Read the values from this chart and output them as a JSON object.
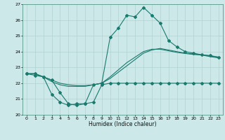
{
  "xlabel": "Humidex (Indice chaleur)",
  "bg_color": "#cce8e8",
  "grid_color": "#aacccc",
  "line_color": "#1a7a6e",
  "xlim": [
    -0.5,
    23.5
  ],
  "ylim": [
    20,
    27
  ],
  "xticks": [
    0,
    1,
    2,
    3,
    4,
    5,
    6,
    7,
    8,
    9,
    10,
    11,
    12,
    13,
    14,
    15,
    16,
    17,
    18,
    19,
    20,
    21,
    22,
    23
  ],
  "yticks": [
    20,
    21,
    22,
    23,
    24,
    25,
    26,
    27
  ],
  "series_high_x": [
    0,
    1,
    2,
    3,
    4,
    5,
    6,
    7,
    8,
    9,
    10,
    11,
    12,
    13,
    14,
    15,
    16,
    17,
    18,
    19,
    20,
    21,
    22,
    23
  ],
  "series_high_y": [
    22.6,
    22.6,
    22.4,
    22.2,
    21.4,
    20.7,
    20.6,
    20.7,
    21.9,
    22.0,
    24.9,
    25.5,
    26.3,
    26.2,
    26.8,
    26.3,
    25.8,
    24.7,
    24.3,
    24.0,
    23.9,
    23.8,
    23.75,
    23.65
  ],
  "series_low_x": [
    0,
    1,
    2,
    3,
    4,
    5,
    6,
    7,
    8,
    9,
    10,
    11,
    12,
    13,
    14,
    15,
    16,
    17,
    18,
    19,
    20,
    21,
    22,
    23
  ],
  "series_low_y": [
    22.6,
    22.5,
    22.4,
    21.3,
    20.8,
    20.6,
    20.7,
    20.7,
    20.8,
    21.9,
    22.0,
    22.0,
    22.0,
    22.0,
    22.0,
    22.0,
    22.0,
    22.0,
    22.0,
    22.0,
    22.0,
    22.0,
    22.0,
    22.0
  ],
  "series_avg1_x": [
    0,
    1,
    2,
    3,
    4,
    5,
    6,
    7,
    8,
    9,
    10,
    11,
    12,
    13,
    14,
    15,
    16,
    17,
    18,
    19,
    20,
    21,
    22,
    23
  ],
  "series_avg1_y": [
    22.6,
    22.6,
    22.4,
    22.1,
    21.9,
    21.8,
    21.8,
    21.8,
    21.9,
    22.0,
    22.3,
    22.7,
    23.1,
    23.5,
    23.9,
    24.1,
    24.2,
    24.1,
    24.0,
    23.9,
    23.85,
    23.8,
    23.72,
    23.65
  ],
  "series_avg2_x": [
    0,
    1,
    2,
    3,
    4,
    5,
    6,
    7,
    8,
    9,
    10,
    11,
    12,
    13,
    14,
    15,
    16,
    17,
    18,
    19,
    20,
    21,
    22,
    23
  ],
  "series_avg2_y": [
    22.6,
    22.6,
    22.4,
    22.2,
    22.0,
    21.9,
    21.85,
    21.85,
    21.9,
    22.0,
    22.4,
    22.85,
    23.3,
    23.65,
    24.0,
    24.15,
    24.15,
    24.05,
    23.95,
    23.88,
    23.82,
    23.78,
    23.68,
    23.6
  ]
}
